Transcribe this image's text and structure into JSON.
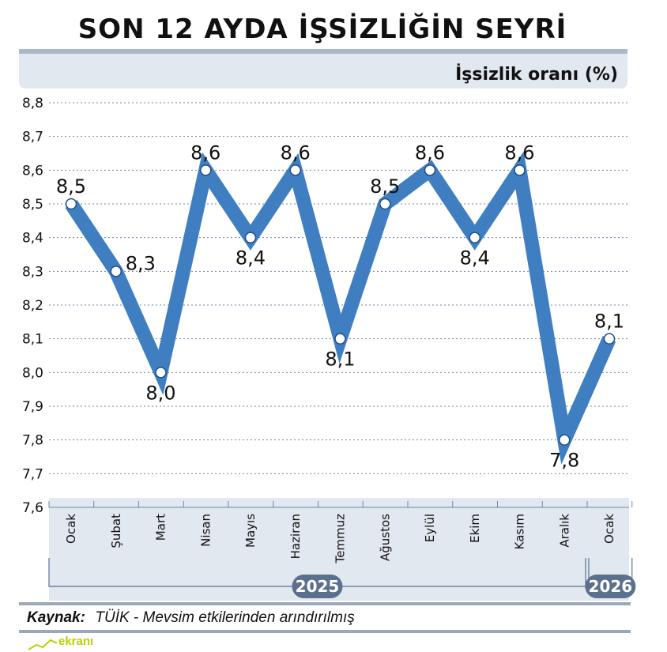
{
  "chart_data": {
    "type": "line",
    "title": "SON 12 AYDA İŞSİZLİĞİN SEYRİ",
    "unit_label": "İşsizlik oranı (%)",
    "categories": [
      "Ocak",
      "Şubat",
      "Mart",
      "Nisan",
      "Mayıs",
      "Haziran",
      "Temmuz",
      "Ağustos",
      "Eylül",
      "Ekim",
      "Kasım",
      "Aralık",
      "Ocak"
    ],
    "series": [
      {
        "values": [
          8.5,
          8.3,
          8.0,
          8.6,
          8.4,
          8.6,
          8.1,
          8.5,
          8.6,
          8.4,
          8.6,
          7.8,
          8.1
        ]
      }
    ],
    "data_labels": [
      "8,5",
      "8,3",
      "8,0",
      "8,6",
      "8,4",
      "8,6",
      "8,1",
      "8,5",
      "8,6",
      "8,4",
      "8,6",
      "7,8",
      "8,1"
    ],
    "label_positions": [
      "above",
      "right",
      "below",
      "above",
      "below",
      "above",
      "below",
      "above",
      "above",
      "below",
      "above",
      "below",
      "above"
    ],
    "ylim": [
      7.6,
      8.8
    ],
    "yticks": [
      7.6,
      7.7,
      7.8,
      7.9,
      8.0,
      8.1,
      8.2,
      8.3,
      8.4,
      8.5,
      8.6,
      8.7,
      8.8
    ],
    "ytick_labels": [
      "7,6",
      "7,7",
      "7,8",
      "7,9",
      "8,0",
      "8,1",
      "8,2",
      "8,3",
      "8,4",
      "8,5",
      "8,6",
      "8,7",
      "8,8"
    ],
    "years": [
      {
        "label": "2025",
        "months": 12
      },
      {
        "label": "2026",
        "months": 1
      }
    ],
    "grid": true,
    "line_color": "#3f7fc1",
    "panel_color": "#e2e8ef"
  },
  "source": {
    "label": "Kaynak:",
    "text": "TÜİK - Mevsim etkilerinden arındırılmış"
  },
  "logo": {
    "text": "ekranı"
  }
}
